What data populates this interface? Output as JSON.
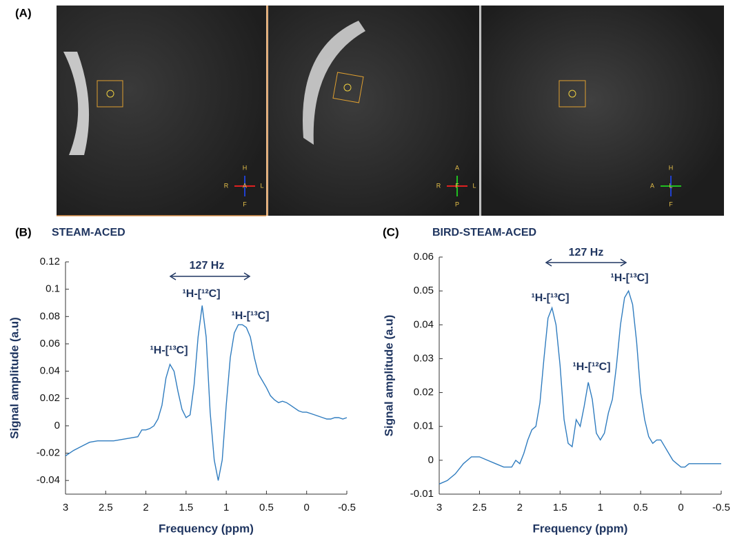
{
  "panel_labels": [
    "(A)",
    "(B)",
    "(C)"
  ],
  "mri_views": [
    {
      "top": "H",
      "left": "R",
      "right": "L",
      "bottom": "F",
      "center": "A"
    },
    {
      "top": "A",
      "left": "R",
      "right": "L",
      "bottom": "P",
      "center": "F"
    },
    {
      "top": "H",
      "left": "A",
      "bottom": "F",
      "center": "L"
    }
  ],
  "chart_data": [
    {
      "type": "line",
      "title": "STEAM-ACED",
      "xlabel": "Frequency (ppm)",
      "ylabel": "Signal amplitude (a.u)",
      "color": "#2f7cbf",
      "annotations": [
        "127 Hz",
        "¹H-[¹²C]",
        "¹H-[¹³C]",
        "¹H-[¹³C]"
      ],
      "xlim": [
        3,
        -0.5
      ],
      "xticks": [
        3,
        2.5,
        2,
        1.5,
        1,
        0.5,
        0,
        -0.5
      ],
      "ylim": [
        -0.05,
        0.12
      ],
      "yticks": [
        0.12,
        0.1,
        0.08,
        0.06,
        0.04,
        0.02,
        0,
        -0.02,
        -0.04
      ],
      "x": [
        3,
        2.9,
        2.8,
        2.7,
        2.6,
        2.5,
        2.4,
        2.3,
        2.2,
        2.1,
        2.05,
        2,
        1.95,
        1.9,
        1.85,
        1.8,
        1.75,
        1.7,
        1.65,
        1.6,
        1.55,
        1.5,
        1.45,
        1.4,
        1.35,
        1.3,
        1.25,
        1.2,
        1.15,
        1.1,
        1.05,
        1,
        0.95,
        0.9,
        0.85,
        0.8,
        0.75,
        0.7,
        0.65,
        0.6,
        0.55,
        0.5,
        0.45,
        0.4,
        0.35,
        0.3,
        0.25,
        0.2,
        0.15,
        0.1,
        0.05,
        0,
        -0.05,
        -0.1,
        -0.15,
        -0.2,
        -0.25,
        -0.3,
        -0.35,
        -0.4,
        -0.45,
        -0.5
      ],
      "values": [
        -0.022,
        -0.018,
        -0.015,
        -0.012,
        -0.011,
        -0.011,
        -0.011,
        -0.01,
        -0.009,
        -0.008,
        -0.003,
        -0.003,
        -0.002,
        0,
        0.005,
        0.015,
        0.035,
        0.045,
        0.04,
        0.025,
        0.012,
        0.006,
        0.008,
        0.03,
        0.065,
        0.088,
        0.065,
        0.01,
        -0.025,
        -0.04,
        -0.025,
        0.015,
        0.05,
        0.068,
        0.074,
        0.074,
        0.072,
        0.065,
        0.05,
        0.038,
        0.033,
        0.028,
        0.022,
        0.019,
        0.017,
        0.018,
        0.017,
        0.015,
        0.013,
        0.011,
        0.01,
        0.01,
        0.009,
        0.008,
        0.007,
        0.006,
        0.005,
        0.005,
        0.006,
        0.006,
        0.005,
        0.006
      ]
    },
    {
      "type": "line",
      "title": "BIRD-STEAM-ACED",
      "xlabel": "Frequency (ppm)",
      "ylabel": "Signal amplitude (a.u)",
      "color": "#2f7cbf",
      "annotations": [
        "127 Hz",
        "¹H-[¹³C]",
        "¹H-[¹³C]",
        "¹H-[¹²C]"
      ],
      "xlim": [
        3,
        -0.5
      ],
      "xticks": [
        3,
        2.5,
        2,
        1.5,
        1,
        0.5,
        0,
        -0.5
      ],
      "ylim": [
        -0.01,
        0.06
      ],
      "yticks": [
        0.06,
        0.05,
        0.04,
        0.03,
        0.02,
        0.01,
        0,
        -0.01
      ],
      "x": [
        3,
        2.9,
        2.8,
        2.7,
        2.6,
        2.5,
        2.4,
        2.3,
        2.2,
        2.1,
        2.05,
        2,
        1.95,
        1.9,
        1.85,
        1.8,
        1.75,
        1.7,
        1.65,
        1.6,
        1.55,
        1.5,
        1.45,
        1.4,
        1.35,
        1.3,
        1.25,
        1.2,
        1.15,
        1.1,
        1.05,
        1,
        0.95,
        0.9,
        0.85,
        0.8,
        0.75,
        0.7,
        0.65,
        0.6,
        0.55,
        0.5,
        0.45,
        0.4,
        0.35,
        0.3,
        0.25,
        0.2,
        0.15,
        0.1,
        0.05,
        0,
        -0.05,
        -0.1,
        -0.15,
        -0.2,
        -0.25,
        -0.3,
        -0.35,
        -0.4,
        -0.45,
        -0.5
      ],
      "values": [
        -0.007,
        -0.006,
        -0.004,
        -0.001,
        0.001,
        0.001,
        0,
        -0.001,
        -0.002,
        -0.002,
        0,
        -0.001,
        0.002,
        0.006,
        0.009,
        0.01,
        0.017,
        0.03,
        0.042,
        0.045,
        0.04,
        0.028,
        0.012,
        0.005,
        0.004,
        0.012,
        0.01,
        0.016,
        0.023,
        0.018,
        0.008,
        0.006,
        0.008,
        0.014,
        0.018,
        0.028,
        0.04,
        0.048,
        0.05,
        0.046,
        0.035,
        0.02,
        0.012,
        0.007,
        0.005,
        0.006,
        0.006,
        0.004,
        0.002,
        0,
        -0.001,
        -0.002,
        -0.002,
        -0.001,
        -0.001,
        -0.001,
        -0.001,
        -0.001,
        -0.001,
        -0.001,
        -0.001,
        -0.001
      ]
    }
  ]
}
